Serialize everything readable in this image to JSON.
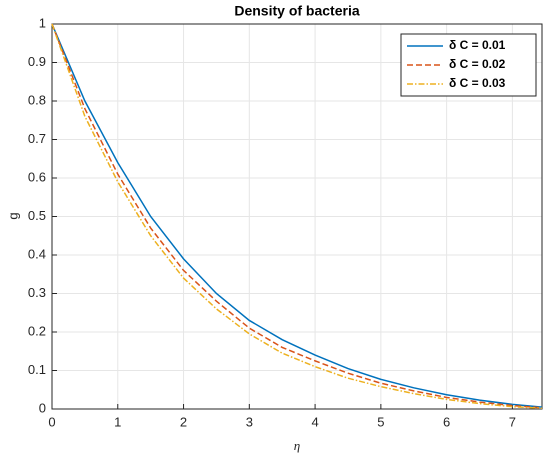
{
  "chart_data": {
    "type": "line",
    "title": "Density of bacteria",
    "x_label": "η",
    "y_label": "g",
    "x": [
      0,
      0.5,
      1,
      1.5,
      2,
      2.5,
      3,
      3.5,
      4,
      4.5,
      5,
      5.5,
      6,
      6.5,
      7,
      7.45
    ],
    "series": [
      {
        "name": "δ C = 0.01",
        "color": "#0072bd",
        "dash": "solid",
        "values": [
          1,
          0.8,
          0.64,
          0.5,
          0.39,
          0.3,
          0.23,
          0.18,
          0.14,
          0.105,
          0.077,
          0.055,
          0.037,
          0.023,
          0.012,
          0.005
        ]
      },
      {
        "name": "δ C = 0.02",
        "color": "#d95319",
        "dash": "dashed",
        "values": [
          1,
          0.78,
          0.61,
          0.47,
          0.36,
          0.28,
          0.21,
          0.16,
          0.125,
          0.093,
          0.067,
          0.047,
          0.03,
          0.018,
          0.009,
          0.003
        ]
      },
      {
        "name": "δ C = 0.03",
        "color": "#edb120",
        "dash": "dashdot",
        "values": [
          1,
          0.76,
          0.59,
          0.45,
          0.34,
          0.26,
          0.195,
          0.145,
          0.11,
          0.08,
          0.058,
          0.04,
          0.025,
          0.014,
          0.006,
          0.002
        ]
      }
    ],
    "xlim": [
      0,
      7.45
    ],
    "ylim": [
      0,
      1
    ],
    "xticks": [
      0,
      1,
      2,
      3,
      4,
      5,
      6,
      7
    ],
    "yticks": [
      0,
      0.1,
      0.2,
      0.3,
      0.4,
      0.5,
      0.6,
      0.7,
      0.8,
      0.9,
      1
    ],
    "grid": true,
    "legend": "top-right"
  }
}
